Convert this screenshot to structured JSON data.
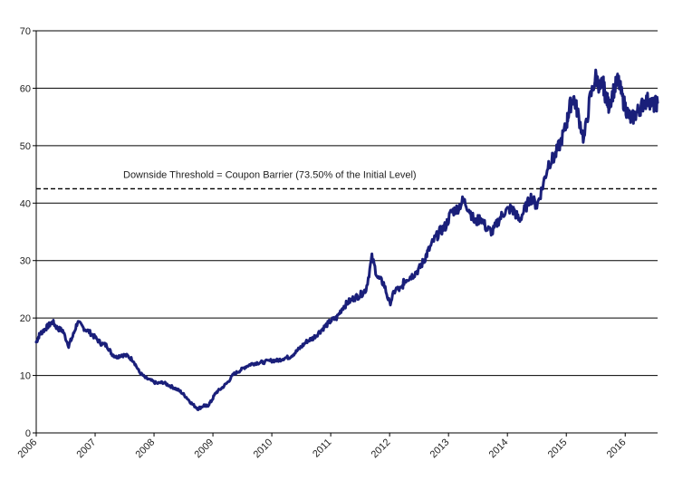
{
  "chart_data": {
    "type": "line",
    "title": "",
    "xlabel": "",
    "ylabel": "",
    "xlim": [
      2006.0,
      2016.55
    ],
    "ylim": [
      0,
      70
    ],
    "grid": {
      "y": true,
      "x": false
    },
    "legend": "none",
    "x_ticks": [
      "2006",
      "2007",
      "2008",
      "2009",
      "2010",
      "2011",
      "2012",
      "2013",
      "2014",
      "2015",
      "2016"
    ],
    "y_ticks": [
      "0",
      "10",
      "20",
      "30",
      "40",
      "50",
      "60",
      "70"
    ],
    "series": [
      {
        "color": "#1a1f7a",
        "x": [
          2006.0,
          2006.06,
          2006.12,
          2006.2,
          2006.28,
          2006.36,
          2006.45,
          2006.55,
          2006.62,
          2006.7,
          2006.8,
          2006.9,
          2007.0,
          2007.1,
          2007.2,
          2007.28,
          2007.36,
          2007.45,
          2007.55,
          2007.65,
          2007.75,
          2007.85,
          2007.95,
          2008.05,
          2008.15,
          2008.25,
          2008.35,
          2008.45,
          2008.55,
          2008.65,
          2008.75,
          2008.85,
          2008.9,
          2008.97,
          2009.05,
          2009.15,
          2009.25,
          2009.35,
          2009.45,
          2009.55,
          2009.65,
          2009.75,
          2009.85,
          2010.0,
          2010.1,
          2010.2,
          2010.3,
          2010.4,
          2010.5,
          2010.6,
          2010.7,
          2010.8,
          2010.9,
          2011.0,
          2011.1,
          2011.2,
          2011.3,
          2011.4,
          2011.5,
          2011.6,
          2011.7,
          2011.8,
          2011.9,
          2012.0,
          2012.1,
          2012.2,
          2012.25,
          2012.32,
          2012.4,
          2012.5,
          2012.58,
          2012.65,
          2012.75,
          2012.85,
          2012.95,
          2013.05,
          2013.15,
          2013.25,
          2013.35,
          2013.45,
          2013.55,
          2013.65,
          2013.75,
          2013.85,
          2013.95,
          2014.05,
          2014.12,
          2014.2,
          2014.3,
          2014.4,
          2014.5,
          2014.6,
          2014.7,
          2014.8,
          2014.9,
          2015.0,
          2015.05,
          2015.12,
          2015.2,
          2015.3,
          2015.4,
          2015.5,
          2015.58,
          2015.62,
          2015.66,
          2015.72,
          2015.8,
          2015.88,
          2015.96,
          2016.03,
          2016.1,
          2016.18,
          2016.25,
          2016.32,
          2016.4,
          2016.48,
          2016.55
        ],
        "values": [
          15.8,
          17.2,
          17.8,
          18.6,
          19.3,
          18.2,
          17.8,
          15.2,
          16.8,
          19.3,
          18.3,
          17.6,
          16.6,
          15.6,
          15.2,
          13.8,
          13.2,
          13.6,
          13.4,
          12.6,
          10.6,
          9.6,
          9.1,
          8.6,
          8.8,
          8.3,
          7.8,
          7.2,
          6.2,
          5.0,
          4.2,
          4.8,
          4.6,
          5.5,
          7.0,
          7.8,
          8.8,
          10.2,
          10.8,
          11.5,
          12.0,
          12.2,
          12.3,
          12.6,
          12.6,
          13.0,
          13.2,
          14.0,
          15.0,
          16.0,
          16.5,
          17.5,
          18.5,
          19.5,
          20.0,
          21.8,
          22.8,
          23.5,
          24.0,
          25.0,
          30.5,
          27.0,
          26.0,
          22.5,
          25.0,
          25.0,
          26.5,
          27.0,
          27.5,
          28.5,
          30.0,
          31.5,
          33.5,
          35.0,
          36.0,
          38.5,
          39.0,
          40.5,
          39.0,
          36.5,
          37.5,
          35.5,
          35.0,
          37.0,
          38.5,
          39.0,
          38.5,
          37.0,
          39.0,
          41.0,
          39.5,
          43.0,
          47.0,
          48.0,
          50.5,
          53.5,
          56.5,
          58.5,
          55.5,
          51.0,
          58.0,
          62.0,
          60.0,
          61.0,
          59.0,
          57.0,
          59.5,
          61.5,
          58.0,
          56.0,
          54.5,
          55.5,
          56.5,
          57.5,
          58.0,
          57.0,
          57.5
        ]
      }
    ],
    "reference_lines": [
      {
        "y": 42.5,
        "style": "dashed",
        "label": "Downside Threshold = Coupon Barrier (73.50% of the Initial Level)"
      }
    ]
  }
}
